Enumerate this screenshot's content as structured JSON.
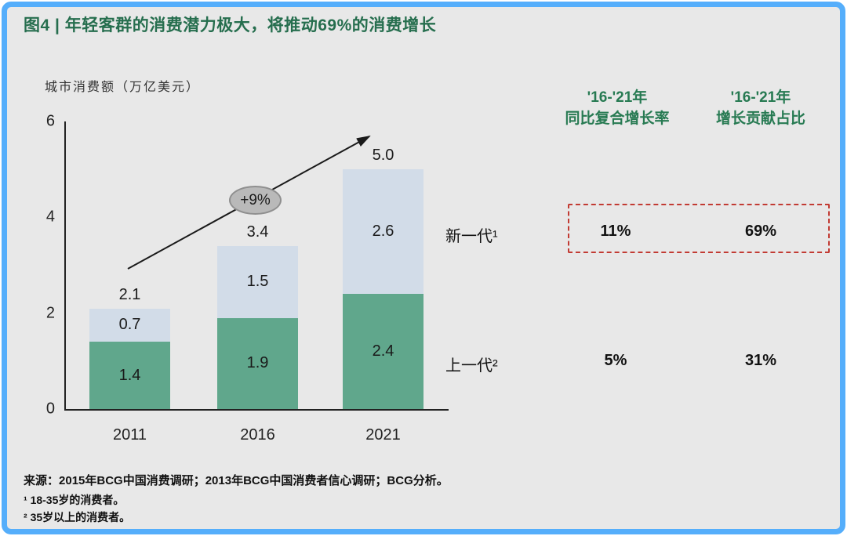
{
  "frame": {
    "background": "#e8e8e8",
    "border_color": "#55aefb"
  },
  "title": "图4 | 年轻客群的消费潜力极大，将推动69%的消费增长",
  "title_color": "#266e4e",
  "chart_data": {
    "type": "bar",
    "stacked": true,
    "ylabel": "城市消费额（万亿美元）",
    "ylim": [
      0,
      6
    ],
    "yticks": [
      "6",
      "4",
      "2",
      "0"
    ],
    "grid": false,
    "categories": [
      "2011",
      "2016",
      "2021"
    ],
    "series": [
      {
        "name": "上一代²",
        "color": "#60a78c",
        "values": [
          1.4,
          1.9,
          2.4
        ],
        "labels": [
          "1.4",
          "1.9",
          "2.4"
        ]
      },
      {
        "name": "新一代¹",
        "color": "#d2dce8",
        "values": [
          0.7,
          1.5,
          2.6
        ],
        "labels": [
          "0.7",
          "1.5",
          "2.6"
        ]
      }
    ],
    "totals": {
      "values": [
        2.1,
        3.4,
        5.0
      ],
      "labels": [
        "2.1",
        "3.4",
        "5.0"
      ]
    },
    "growth_annotation": "+9%",
    "legend_position": "right"
  },
  "comparison": {
    "header_color": "#277a52",
    "highlight_border_color": "#c23b33",
    "columns": [
      {
        "line1": "'16-'21年",
        "line2": "同比复合增长率"
      },
      {
        "line1": "'16-'21年",
        "line2": "增长贡献占比"
      }
    ],
    "rows": [
      {
        "label": "新一代¹",
        "cagr": "11%",
        "contribution": "69%",
        "highlighted": true
      },
      {
        "label": "上一代²",
        "cagr": "5%",
        "contribution": "31%",
        "highlighted": false
      }
    ]
  },
  "footer": {
    "source_label": "来源：",
    "source_text": "2015年BCG中国消费调研；2013年BCG中国消费者信心调研；BCG分析。",
    "footnotes": [
      {
        "marker": "¹",
        "text": "18-35岁的消费者。"
      },
      {
        "marker": "²",
        "text": "35岁以上的消费者。"
      }
    ]
  }
}
